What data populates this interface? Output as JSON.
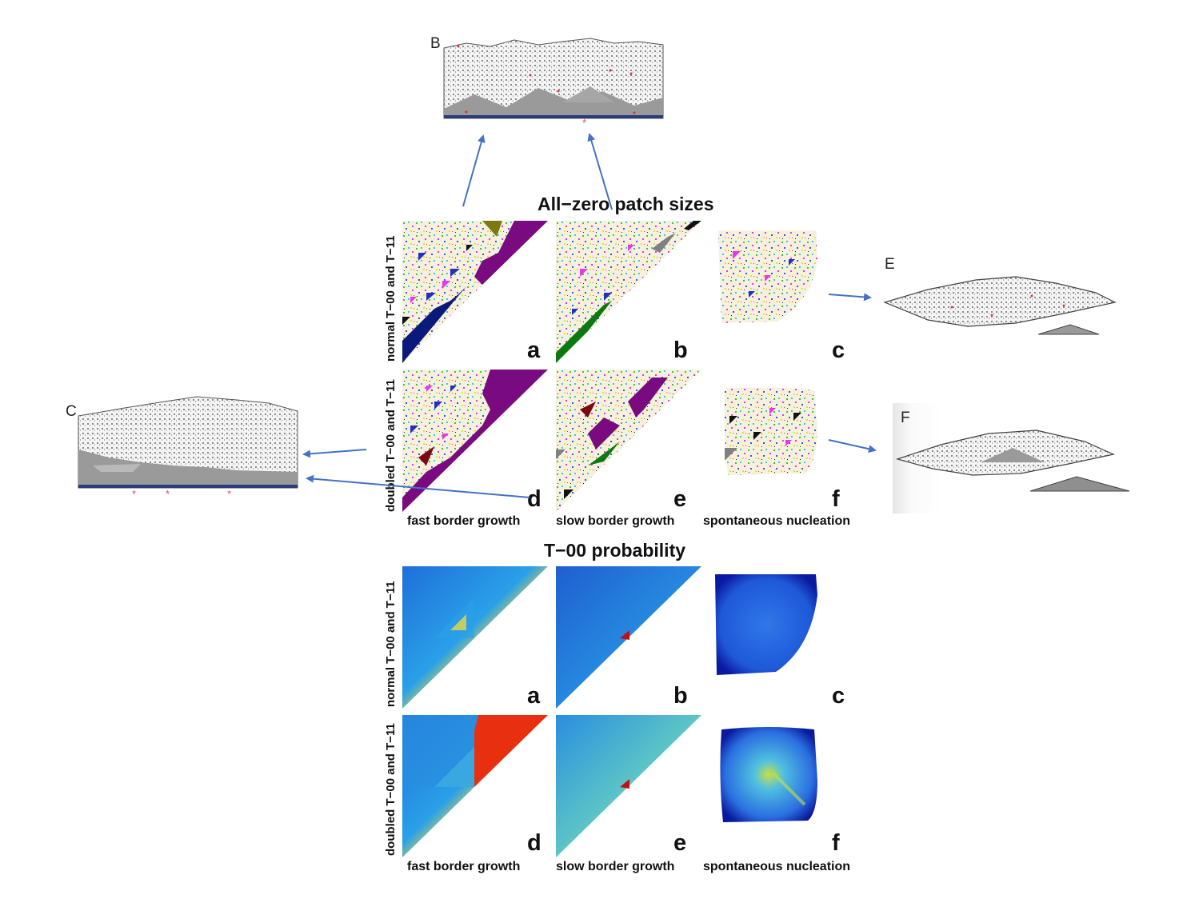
{
  "colors": {
    "patch_purple": "#7a0a80",
    "patch_navy": "#0a1a7a",
    "patch_green": "#0a7a10",
    "patch_olive": "#7a7a10",
    "patch_darkred": "#7a0a10",
    "patch_bg": "#f6f0dc",
    "heat_blue": "#1040c0",
    "heat_red": "#c01010",
    "inset_gray": "#9a9a9a",
    "arrow": "#4472c4",
    "marker": "#e05050"
  },
  "patch_sizes": {
    "title": "All−zero patch sizes",
    "row_labels": [
      "normal T−00 and T−11",
      "doubled T−00 and T−11"
    ],
    "panel_letters": [
      "a",
      "b",
      "c",
      "d",
      "e",
      "f"
    ],
    "column_labels": [
      "fast border growth",
      "slow border growth",
      "spontaneous nucleation"
    ]
  },
  "probability": {
    "title": "T−00 probability",
    "row_labels": [
      "normal T−00 and T−11",
      "doubled T−00 and T−11"
    ],
    "panel_letters": [
      "a",
      "b",
      "c",
      "d",
      "e",
      "f"
    ],
    "column_labels": [
      "fast border growth",
      "slow border growth",
      "spontaneous nucleation"
    ]
  },
  "insets": {
    "B": "B",
    "C": "C",
    "E": "E",
    "F": "F",
    "marker_glyph": "*"
  }
}
